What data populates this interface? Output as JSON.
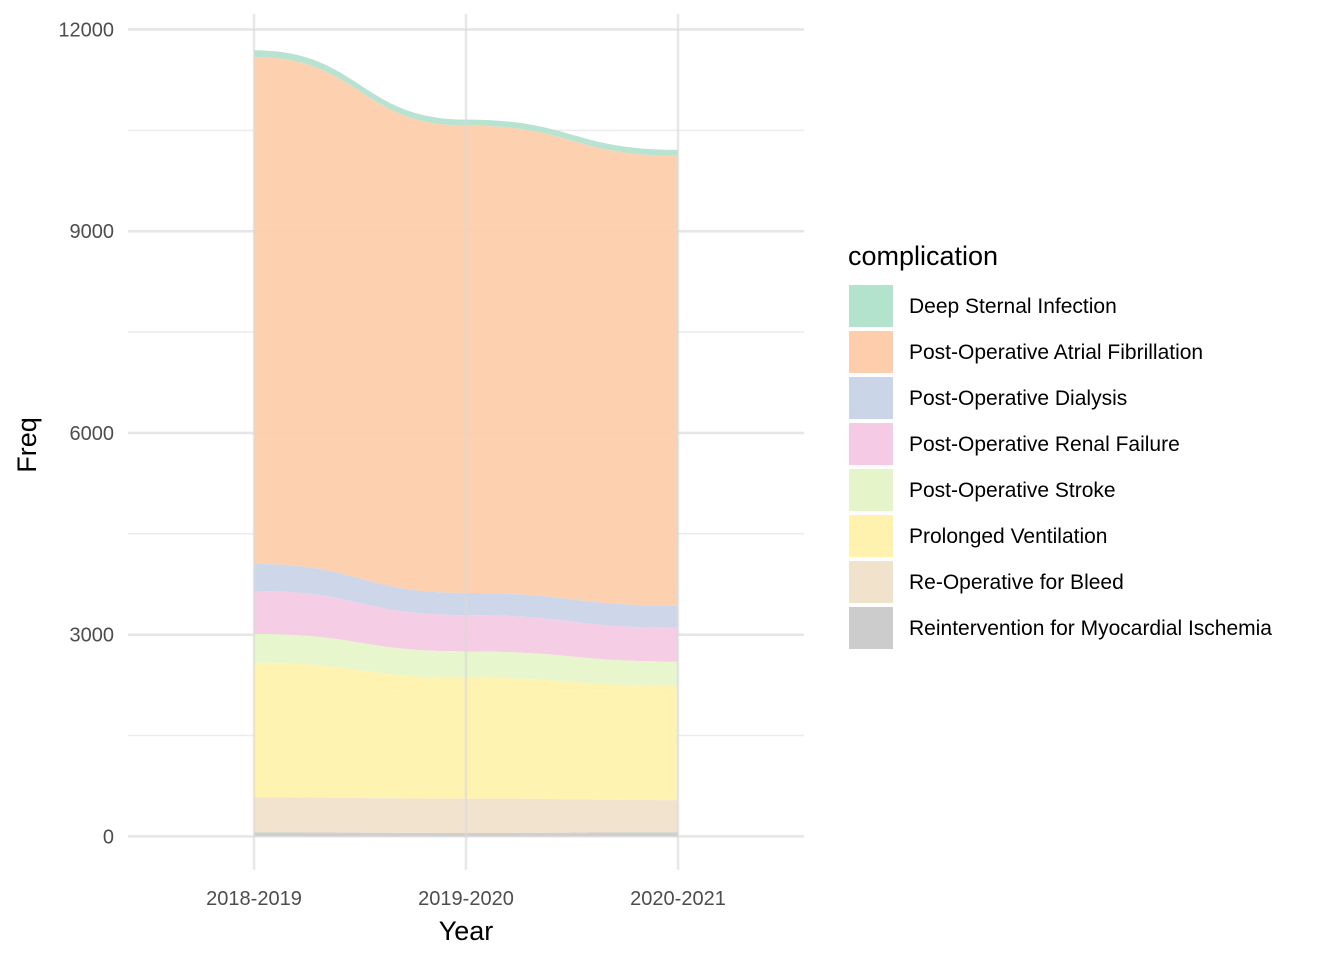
{
  "chart_data": {
    "type": "area",
    "stacked": true,
    "title": "",
    "xlabel": "Year",
    "ylabel": "Freq",
    "categories": [
      "2018-2019",
      "2019-2020",
      "2020-2021"
    ],
    "ylim": [
      -500,
      12230
    ],
    "y_ticks": [
      0,
      3000,
      6000,
      9000,
      12000
    ],
    "grid": true,
    "legend": {
      "title": "complication",
      "placement": "right"
    },
    "series": [
      {
        "name": "Reintervention for Myocardial Ischemia",
        "color": "#cccccc",
        "values": [
          60,
          50,
          60
        ]
      },
      {
        "name": "Re-Operative for Bleed",
        "color": "#f1e2cc",
        "values": [
          520,
          510,
          480
        ]
      },
      {
        "name": "Prolonged Ventilation",
        "color": "#fff2ae",
        "values": [
          2000,
          1800,
          1700
        ]
      },
      {
        "name": "Post-Operative Stroke",
        "color": "#e6f5c9",
        "values": [
          430,
          390,
          360
        ]
      },
      {
        "name": "Post-Operative Renal Failure",
        "color": "#f4cae4",
        "values": [
          640,
          540,
          500
        ]
      },
      {
        "name": "Post-Operative Dialysis",
        "color": "#cbd5e8",
        "values": [
          400,
          330,
          330
        ]
      },
      {
        "name": "Post-Operative Atrial Fibrillation",
        "color": "#fdcdac",
        "values": [
          7540,
          6950,
          6690
        ]
      },
      {
        "name": "Deep Sternal Infection",
        "color": "#b3e2cd",
        "values": [
          100,
          90,
          90
        ]
      }
    ]
  }
}
